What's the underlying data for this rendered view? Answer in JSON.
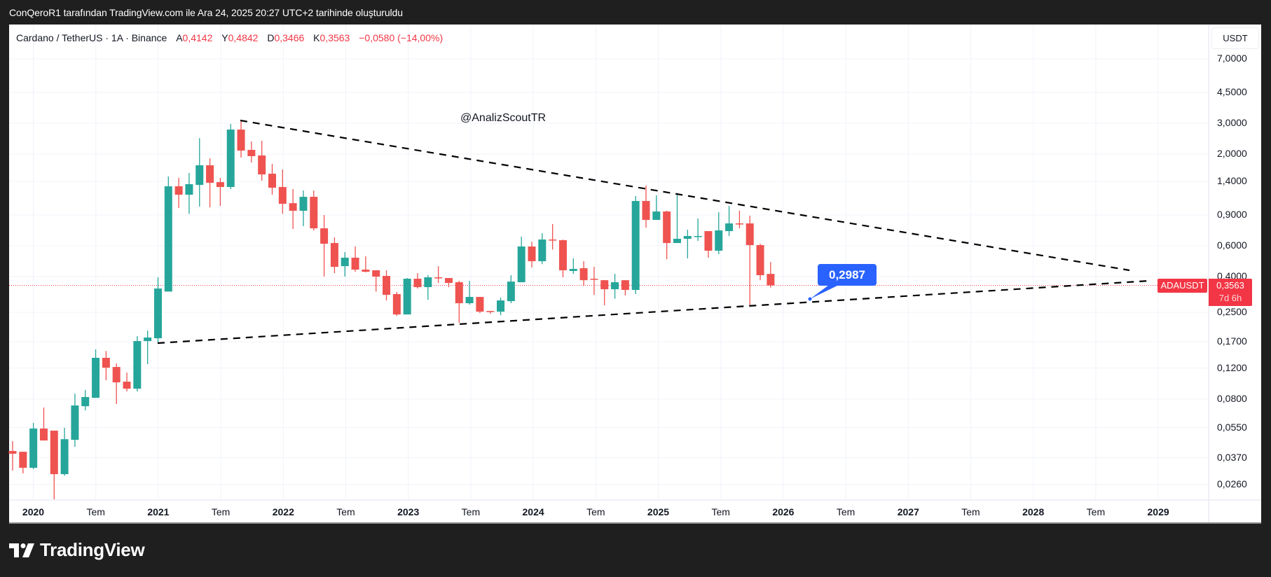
{
  "header": {
    "caption": "ConQeroR1 tarafından TradingView.com ile Ara 24, 2025 20:27 UTC+2 tarihinde oluşturuldu"
  },
  "legend": {
    "symbol": "Cardano / TetherUS · 1A · Binance",
    "open_label": "A",
    "open": "0,4142",
    "high_label": "Y",
    "high": "0,4842",
    "low_label": "D",
    "low": "0,3466",
    "close_label": "K",
    "close": "0,3563",
    "change": "−0,0580 (−14,00%)"
  },
  "currency_button": "USDT",
  "watermark": "@AnalizScoutTR",
  "callout": {
    "value": "0,2987",
    "color": "#2962ff"
  },
  "last_price": {
    "symbol": "ADAUSDT",
    "price": "0,3563",
    "countdown": "7d 6h",
    "color": "#f23645"
  },
  "footer": {
    "brand": "TradingView"
  },
  "colors": {
    "up": "#26a69a",
    "down": "#ef5350",
    "grid": "#f0f3fa",
    "trendline": "#000000"
  },
  "chart_data": {
    "type": "candlestick",
    "title": "Cardano / TetherUS · 1A · Binance",
    "interval": "1 month",
    "scale": "log",
    "ylabel": "USDT",
    "y_ticks": [
      "7,0000",
      "4,5000",
      "3,0000",
      "2,0000",
      "1,4000",
      "0,9000",
      "0,6000",
      "0,4000",
      "0,2500",
      "0,1700",
      "0,1200",
      "0,0800",
      "0,0550",
      "0,0370",
      "0,0260"
    ],
    "x_ticks": [
      "2020",
      "Tem",
      "2021",
      "Tem",
      "2022",
      "Tem",
      "2023",
      "Tem",
      "2024",
      "Tem",
      "2025",
      "Tem",
      "2026",
      "Tem",
      "2027",
      "Tem",
      "2028",
      "Tem",
      "2029"
    ],
    "start": "2019-11",
    "candles": [
      {
        "o": 0.0404,
        "h": 0.046,
        "l": 0.0312,
        "c": 0.039
      },
      {
        "o": 0.04,
        "h": 0.04,
        "l": 0.0301,
        "c": 0.0324
      },
      {
        "o": 0.0324,
        "h": 0.0584,
        "l": 0.0318,
        "c": 0.0543
      },
      {
        "o": 0.0543,
        "h": 0.0715,
        "l": 0.0464,
        "c": 0.0464
      },
      {
        "o": 0.0528,
        "h": 0.0528,
        "l": 0.0214,
        "c": 0.0298
      },
      {
        "o": 0.0298,
        "h": 0.0548,
        "l": 0.0292,
        "c": 0.0472
      },
      {
        "o": 0.0468,
        "h": 0.0859,
        "l": 0.0427,
        "c": 0.0735
      },
      {
        "o": 0.0728,
        "h": 0.09,
        "l": 0.0689,
        "c": 0.0821
      },
      {
        "o": 0.0813,
        "h": 0.1535,
        "l": 0.0813,
        "c": 0.1375
      },
      {
        "o": 0.1375,
        "h": 0.1504,
        "l": 0.1024,
        "c": 0.1208
      },
      {
        "o": 0.1219,
        "h": 0.1277,
        "l": 0.0749,
        "c": 0.0996
      },
      {
        "o": 0.1005,
        "h": 0.1133,
        "l": 0.0884,
        "c": 0.0917
      },
      {
        "o": 0.0917,
        "h": 0.1828,
        "l": 0.0884,
        "c": 0.1714
      },
      {
        "o": 0.1714,
        "h": 0.1968,
        "l": 0.1265,
        "c": 0.1795
      },
      {
        "o": 0.1778,
        "h": 0.3961,
        "l": 0.1668,
        "c": 0.3418
      },
      {
        "o": 0.3285,
        "h": 1.49,
        "l": 0.3285,
        "c": 1.31
      },
      {
        "o": 1.31,
        "h": 1.463,
        "l": 0.985,
        "c": 1.173
      },
      {
        "o": 1.173,
        "h": 1.561,
        "l": 0.914,
        "c": 1.347
      },
      {
        "o": 1.334,
        "h": 2.468,
        "l": 1.003,
        "c": 1.727
      },
      {
        "o": 1.727,
        "h": 1.893,
        "l": 0.994,
        "c": 1.372
      },
      {
        "o": 1.384,
        "h": 1.463,
        "l": 1.012,
        "c": 1.298
      },
      {
        "o": 1.298,
        "h": 2.972,
        "l": 1.263,
        "c": 2.761
      },
      {
        "o": 2.761,
        "h": 3.112,
        "l": 1.911,
        "c": 2.095
      },
      {
        "o": 2.114,
        "h": 2.36,
        "l": 1.791,
        "c": 1.947
      },
      {
        "o": 1.965,
        "h": 2.382,
        "l": 1.41,
        "c": 1.532
      },
      {
        "o": 1.546,
        "h": 1.759,
        "l": 1.173,
        "c": 1.286
      },
      {
        "o": 1.298,
        "h": 1.634,
        "l": 0.914,
        "c": 1.041
      },
      {
        "o": 1.05,
        "h": 1.263,
        "l": 0.7474,
        "c": 0.95
      },
      {
        "o": 0.95,
        "h": 1.24,
        "l": 0.7754,
        "c": 1.141
      },
      {
        "o": 1.141,
        "h": 1.24,
        "l": 0.7337,
        "c": 0.7543
      },
      {
        "o": 0.7543,
        "h": 0.8985,
        "l": 0.4,
        "c": 0.616
      },
      {
        "o": 0.6216,
        "h": 0.6692,
        "l": 0.4186,
        "c": 0.4546
      },
      {
        "o": 0.4588,
        "h": 0.5517,
        "l": 0.4,
        "c": 0.5125
      },
      {
        "o": 0.5125,
        "h": 0.5939,
        "l": 0.4263,
        "c": 0.4383
      },
      {
        "o": 0.4383,
        "h": 0.522,
        "l": 0.4226,
        "c": 0.4263
      },
      {
        "o": 0.4344,
        "h": 0.4344,
        "l": 0.3285,
        "c": 0.3999
      },
      {
        "o": 0.4035,
        "h": 0.4344,
        "l": 0.2923,
        "c": 0.3147
      },
      {
        "o": 0.3176,
        "h": 0.3267,
        "l": 0.2387,
        "c": 0.2432
      },
      {
        "o": 0.2432,
        "h": 0.3924,
        "l": 0.2432,
        "c": 0.3888
      },
      {
        "o": 0.3888,
        "h": 0.4186,
        "l": 0.3418,
        "c": 0.3482
      },
      {
        "o": 0.3482,
        "h": 0.4074,
        "l": 0.2949,
        "c": 0.3961
      },
      {
        "o": 0.3961,
        "h": 0.4588,
        "l": 0.368,
        "c": 0.3924
      },
      {
        "o": 0.3924,
        "h": 0.3924,
        "l": 0.3482,
        "c": 0.368
      },
      {
        "o": 0.3713,
        "h": 0.378,
        "l": 0.2178,
        "c": 0.2818
      },
      {
        "o": 0.2818,
        "h": 0.378,
        "l": 0.2765,
        "c": 0.3061
      },
      {
        "o": 0.3061,
        "h": 0.3061,
        "l": 0.2477,
        "c": 0.2523
      },
      {
        "o": 0.2546,
        "h": 0.2546,
        "l": 0.2454,
        "c": 0.254
      },
      {
        "o": 0.2523,
        "h": 0.3033,
        "l": 0.2409,
        "c": 0.2923
      },
      {
        "o": 0.2897,
        "h": 0.4074,
        "l": 0.2818,
        "c": 0.3745
      },
      {
        "o": 0.3713,
        "h": 0.6755,
        "l": 0.3713,
        "c": 0.5939
      },
      {
        "o": 0.5939,
        "h": 0.6319,
        "l": 0.4504,
        "c": 0.4895
      },
      {
        "o": 0.4895,
        "h": 0.7073,
        "l": 0.4709,
        "c": 0.651
      },
      {
        "o": 0.651,
        "h": 0.7972,
        "l": 0.5701,
        "c": 0.6451
      },
      {
        "o": 0.6451,
        "h": 0.651,
        "l": 0.3961,
        "c": 0.4344
      },
      {
        "o": 0.4304,
        "h": 0.5078,
        "l": 0.4148,
        "c": 0.4423
      },
      {
        "o": 0.4464,
        "h": 0.4895,
        "l": 0.3547,
        "c": 0.3814
      },
      {
        "o": 0.3888,
        "h": 0.4546,
        "l": 0.3147,
        "c": 0.386
      },
      {
        "o": 0.3814,
        "h": 0.3814,
        "l": 0.2741,
        "c": 0.3387
      },
      {
        "o": 0.3387,
        "h": 0.4148,
        "l": 0.2991,
        "c": 0.3713
      },
      {
        "o": 0.3814,
        "h": 0.3814,
        "l": 0.3118,
        "c": 0.3356
      },
      {
        "o": 0.3356,
        "h": 1.152,
        "l": 0.3176,
        "c": 1.08
      },
      {
        "o": 1.08,
        "h": 1.322,
        "l": 0.7613,
        "c": 0.8424
      },
      {
        "o": 0.8424,
        "h": 1.163,
        "l": 0.8424,
        "c": 0.9407
      },
      {
        "o": 0.9407,
        "h": 0.95,
        "l": 0.5031,
        "c": 0.6216
      },
      {
        "o": 0.6216,
        "h": 1.173,
        "l": 0.6216,
        "c": 0.6571
      },
      {
        "o": 0.6571,
        "h": 0.7405,
        "l": 0.5078,
        "c": 0.6817
      },
      {
        "o": 0.6755,
        "h": 0.858,
        "l": 0.6393,
        "c": 0.6817
      },
      {
        "o": 0.727,
        "h": 0.727,
        "l": 0.5125,
        "c": 0.5619
      },
      {
        "o": 0.5619,
        "h": 0.9322,
        "l": 0.5367,
        "c": 0.7337
      },
      {
        "o": 0.727,
        "h": 1.012,
        "l": 0.6817,
        "c": 0.8045
      },
      {
        "o": 0.8045,
        "h": 0.95,
        "l": 0.7543,
        "c": 0.7972
      },
      {
        "o": 0.8045,
        "h": 0.8903,
        "l": 0.2716,
        "c": 0.6049
      },
      {
        "o": 0.6049,
        "h": 0.616,
        "l": 0.3814,
        "c": 0.4074
      },
      {
        "o": 0.4142,
        "h": 0.4842,
        "l": 0.3466,
        "c": 0.3563
      }
    ],
    "trendlines": [
      {
        "name": "upper-resistance",
        "from": {
          "date": "2021-09",
          "price": 3.1
        },
        "to": {
          "date": "2028-11",
          "price": 0.43
        },
        "style": "dashed"
      },
      {
        "name": "lower-support",
        "from": {
          "date": "2021-01",
          "price": 0.1668
        },
        "to": {
          "date": "2029-01",
          "price": 0.38
        },
        "style": "dashed"
      }
    ],
    "annotations": [
      {
        "type": "callout",
        "text": "0,2987",
        "anchor": {
          "date": "2026-06",
          "price": 0.2987
        }
      },
      {
        "type": "text",
        "text": "@AnalizScoutTR"
      }
    ],
    "last_price_line": 0.3563
  }
}
